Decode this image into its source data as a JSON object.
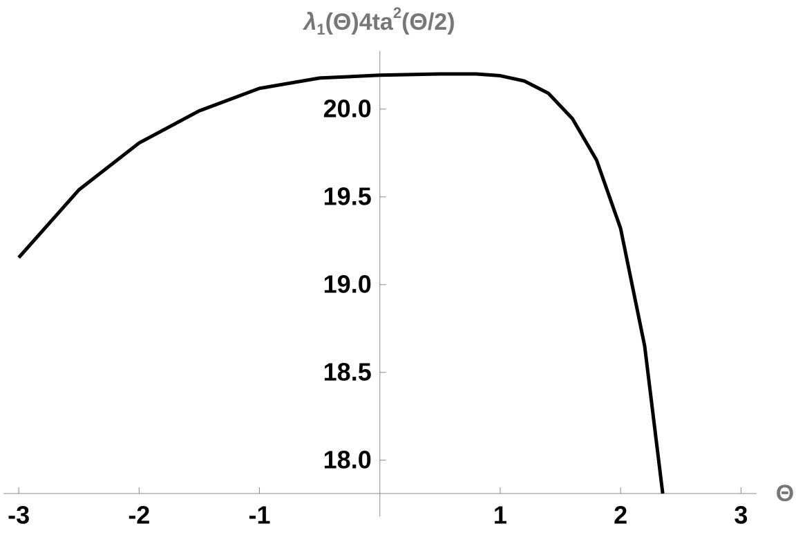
{
  "chart_data": {
    "type": "line",
    "title": [
      "λ",
      "1",
      "(Θ)4ta",
      "2",
      "(Θ/2)"
    ],
    "x_label": "Θ",
    "x": [
      -3,
      -2.5,
      -2,
      -1.5,
      -1,
      -0.5,
      0,
      0.5,
      0.8,
      1,
      1.2,
      1.4,
      1.6,
      1.8,
      2.0,
      2.2,
      2.35
    ],
    "series": [
      {
        "color": "#000000",
        "values": [
          19.154,
          19.54,
          19.807,
          19.99,
          20.118,
          20.177,
          20.193,
          20.2,
          20.2,
          20.19,
          20.16,
          20.09,
          19.945,
          19.71,
          19.32,
          18.65,
          17.81
        ]
      }
    ],
    "xlim": [
      -3.15,
      3.13
    ],
    "ylim": [
      17.81,
      20.33
    ],
    "xticks": [
      -3,
      -2,
      -1,
      1,
      2,
      3
    ],
    "yticks": [
      {
        "value": 18,
        "label": "18.0"
      },
      18.5,
      {
        "value": 19,
        "label": "19.0"
      },
      19.5,
      {
        "value": 20,
        "label": "20.0"
      }
    ],
    "grid": false
  }
}
